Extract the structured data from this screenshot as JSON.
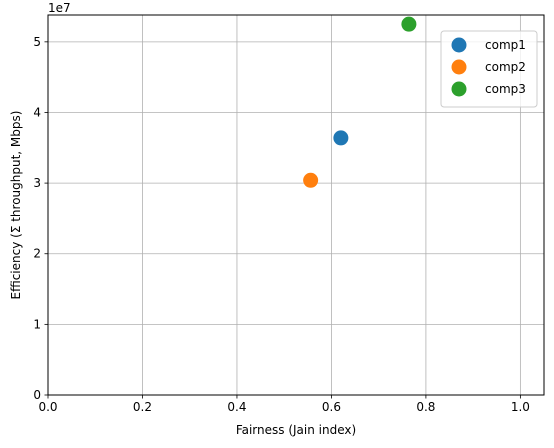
{
  "chart_data": {
    "type": "scatter",
    "xlabel": "Fairness (Jain index)",
    "ylabel": "Efficiency (Σ throughput, Mbps)",
    "y_offset_text": "1e7",
    "xlim": [
      0,
      1.05
    ],
    "ylim": [
      0,
      53800000
    ],
    "x_ticks": [
      0,
      0.2,
      0.4,
      0.6,
      0.8,
      1.0
    ],
    "x_tick_labels": [
      "0.0",
      "0.2",
      "0.4",
      "0.6",
      "0.8",
      "1.0"
    ],
    "y_ticks": [
      0,
      10000000,
      20000000,
      30000000,
      40000000,
      50000000
    ],
    "y_tick_labels": [
      "0",
      "1",
      "2",
      "3",
      "4",
      "5"
    ],
    "grid": true,
    "legend_position": "top-right",
    "series": [
      {
        "name": "comp1",
        "color": "#1f77b4",
        "x": [
          0.62
        ],
        "y": [
          36400000
        ]
      },
      {
        "name": "comp2",
        "color": "#ff7f0e",
        "x": [
          0.556
        ],
        "y": [
          30400000
        ]
      },
      {
        "name": "comp3",
        "color": "#2ca02c",
        "x": [
          0.764
        ],
        "y": [
          52500000
        ]
      }
    ]
  }
}
